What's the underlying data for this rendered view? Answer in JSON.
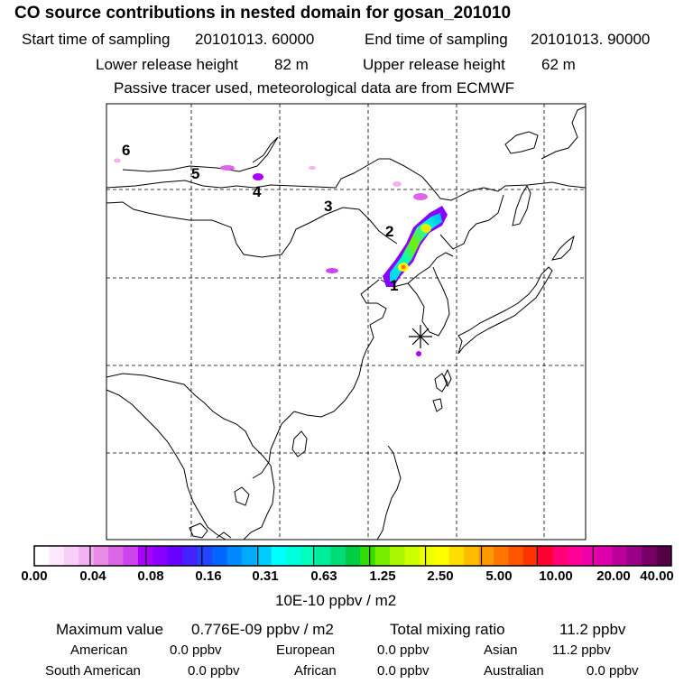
{
  "title": "CO  source contributions in nested domain for gosan_201010",
  "header": {
    "start_label": "Start time of sampling",
    "start_value": "20101013. 60000",
    "end_label": "End time of sampling",
    "end_value": "20101013. 90000",
    "lower_label": "Lower release height",
    "lower_value": "82 m",
    "upper_label": "Upper release height",
    "upper_value": "62 m",
    "tracer_note": "Passive tracer used, meteorological data are from ECMWF"
  },
  "map": {
    "station_marker": "asterisk-icon",
    "source_labels": [
      "1",
      "2",
      "3",
      "4",
      "5",
      "6"
    ]
  },
  "colorbar": {
    "tick_labels": [
      "0.00",
      "0.04",
      "0.08",
      "0.16",
      "0.31",
      "0.63",
      "1.25",
      "2.50",
      "5.00",
      "10.00",
      "20.00",
      "40.00"
    ],
    "unit": "10E-10 ppbv / m2",
    "colors": [
      "#ffffff",
      "#fde8fd",
      "#f8cff8",
      "#f2b2f2",
      "#e88ce8",
      "#dc66e6",
      "#cc44ee",
      "#aa00ff",
      "#8800ff",
      "#6a00ff",
      "#4422ff",
      "#2244ff",
      "#0066ff",
      "#0088ff",
      "#00aaff",
      "#00ccff",
      "#00ffff",
      "#00ffdd",
      "#00ffbb",
      "#00ee99",
      "#00dd77",
      "#00cc44",
      "#33dd00",
      "#77ee00",
      "#aaf500",
      "#ccff00",
      "#eeff00",
      "#ffff00",
      "#ffdd00",
      "#ffbb00",
      "#ff9900",
      "#ff7700",
      "#ff5500",
      "#ff3300",
      "#ff0033",
      "#ff0077",
      "#ff0099",
      "#ee00aa",
      "#dd00aa",
      "#bb0099",
      "#990088",
      "#770066",
      "#550044"
    ]
  },
  "stats": {
    "max_label": "Maximum value",
    "max_value": "0.776E-09 ppbv / m2",
    "total_label": "Total mixing ratio",
    "total_value": "11.2 ppbv",
    "regions": [
      {
        "name": "American",
        "value": "0.0 ppbv"
      },
      {
        "name": "European",
        "value": "0.0 ppbv"
      },
      {
        "name": "Asian",
        "value": "11.2 ppbv"
      },
      {
        "name": "South American",
        "value": "0.0 ppbv"
      },
      {
        "name": "African",
        "value": "0.0 ppbv"
      },
      {
        "name": "Australian",
        "value": "0.0 ppbv"
      }
    ]
  }
}
